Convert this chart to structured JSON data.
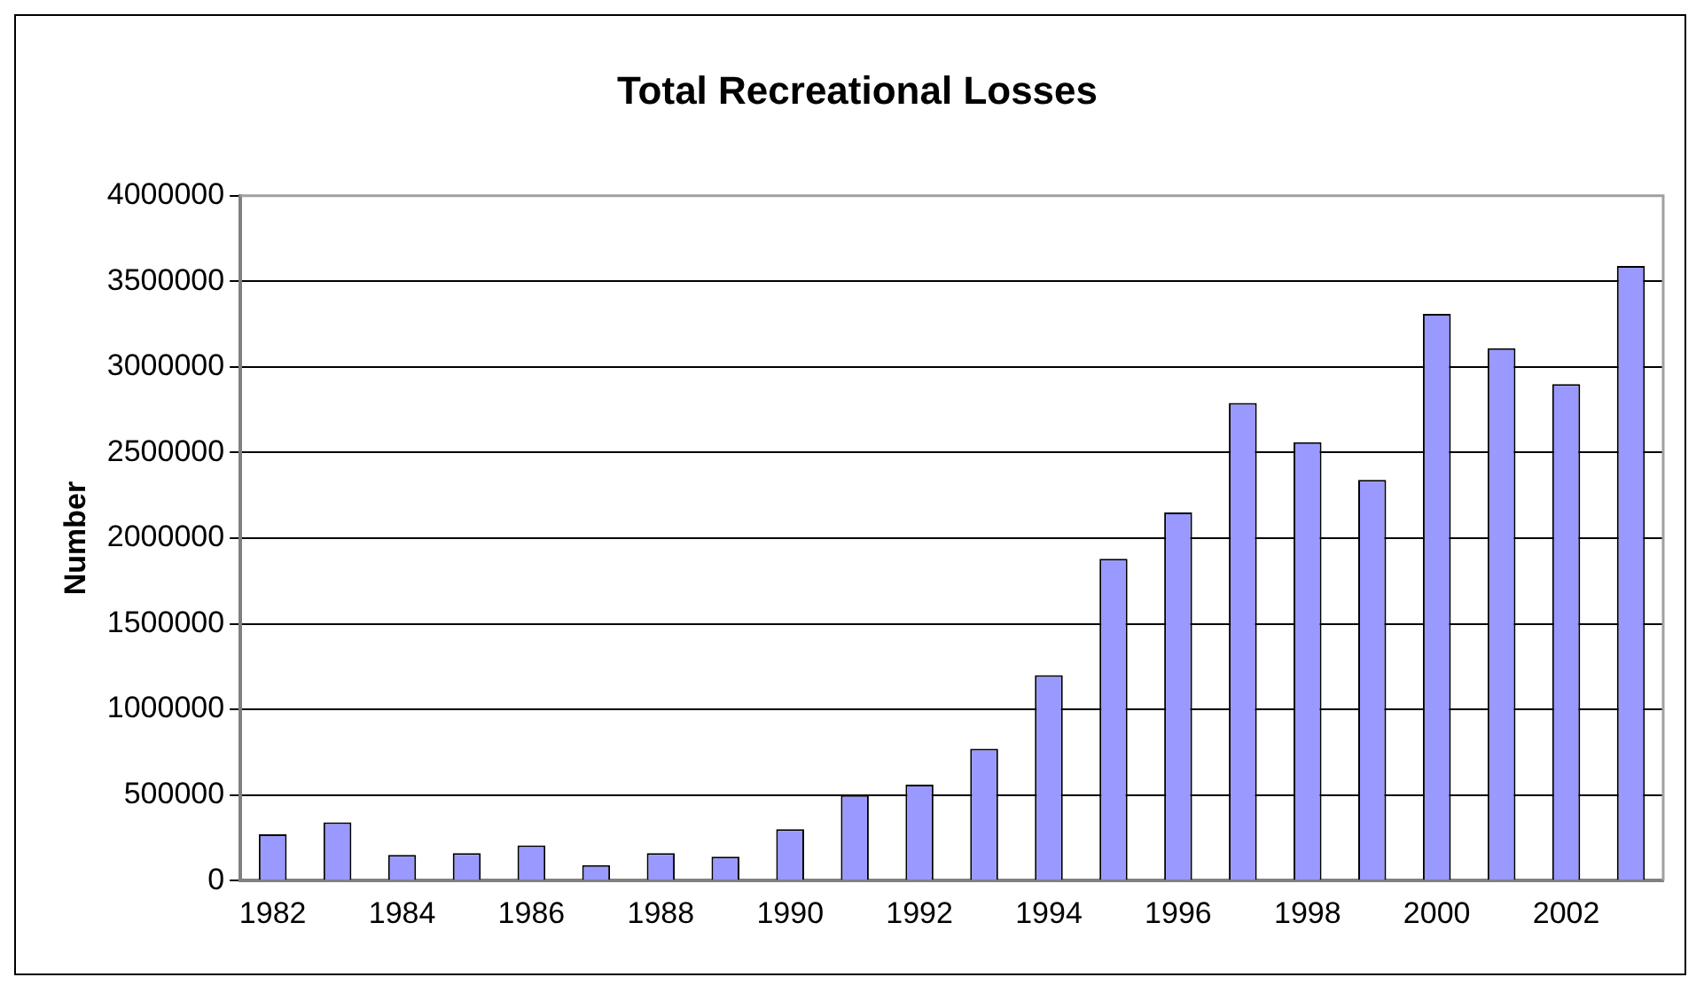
{
  "chart_data": {
    "type": "bar",
    "title": "Total Recreational Losses",
    "ylabel": "Number",
    "categories": [
      "1982",
      null,
      "1984",
      null,
      "1986",
      null,
      "1988",
      null,
      "1990",
      null,
      "1992",
      null,
      "1994",
      null,
      "1996",
      null,
      "1998",
      null,
      "2000",
      null,
      "2002",
      null
    ],
    "series": [
      {
        "color": "#9999ff",
        "values": [
          270000,
          340000,
          150000,
          160000,
          205000,
          90000,
          160000,
          140000,
          300000,
          500000,
          560000,
          770000,
          1200000,
          1880000,
          2150000,
          2790000,
          2560000,
          2340000,
          3310000,
          3110000,
          2900000,
          3590000
        ]
      }
    ],
    "ylim": [
      0,
      4000000
    ],
    "yticks": [
      0,
      500000,
      1000000,
      1500000,
      2000000,
      2500000,
      3000000,
      3500000,
      4000000
    ],
    "grid": "y",
    "legend": false
  }
}
